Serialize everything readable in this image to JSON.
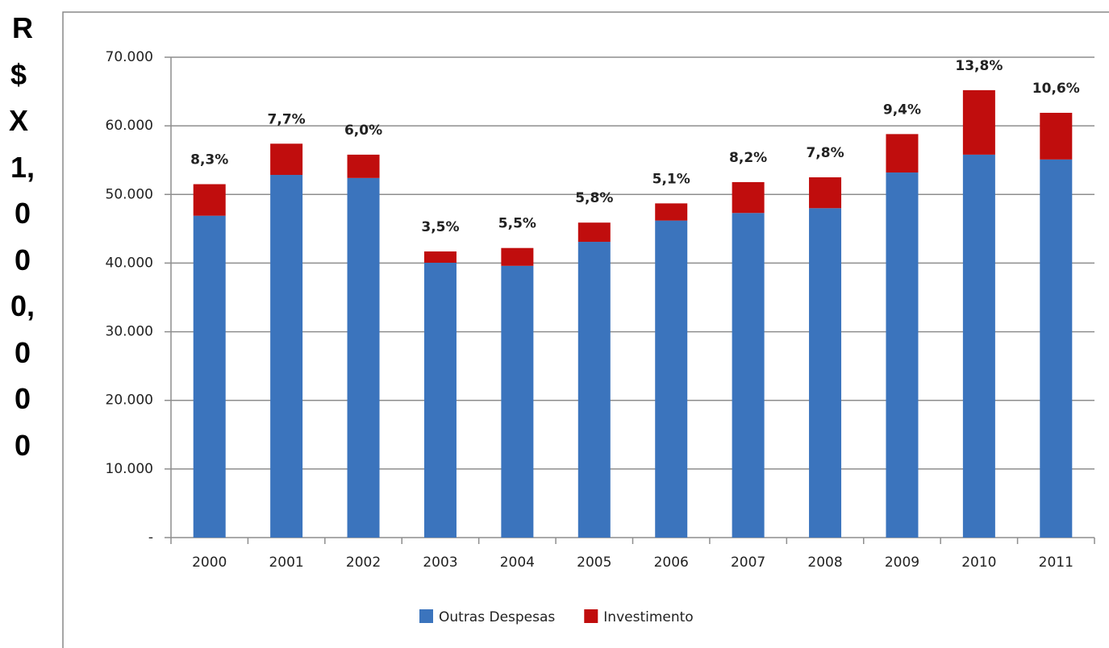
{
  "chart_data": {
    "type": "stacked_bar",
    "y_label": "R$ X 1,000,000",
    "categories": [
      "2000",
      "2001",
      "2002",
      "2003",
      "2004",
      "2005",
      "2006",
      "2007",
      "2008",
      "2009",
      "2010",
      "2011"
    ],
    "series": [
      {
        "name": "Outras Despesas",
        "color": "#3b74bd",
        "values": [
          46900,
          52850,
          52400,
          40050,
          39600,
          43100,
          46200,
          47300,
          48000,
          53200,
          55800,
          55100
        ]
      },
      {
        "name": "Investimento",
        "color": "#c00d0d",
        "values": [
          4600,
          4550,
          3400,
          1650,
          2600,
          2800,
          2500,
          4500,
          4500,
          5600,
          9400,
          6800
        ]
      }
    ],
    "percent_labels": [
      "8,3%",
      "7,7%",
      "6,0%",
      "3,5%",
      "5,5%",
      "5,8%",
      "5,1%",
      "8,2%",
      "7,8%",
      "9,4%",
      "13,8%",
      "10,6%"
    ],
    "ylim": [
      0,
      70000
    ],
    "yticks": [
      {
        "value": 0,
        "label": "-"
      },
      {
        "value": 10000,
        "label": "10.000"
      },
      {
        "value": 20000,
        "label": "20.000"
      },
      {
        "value": 30000,
        "label": "30.000"
      },
      {
        "value": 40000,
        "label": "40.000"
      },
      {
        "value": 50000,
        "label": "50.000"
      },
      {
        "value": 60000,
        "label": "60.000"
      },
      {
        "value": 70000,
        "label": "70.000"
      }
    ],
    "grid": true,
    "legend": "bottom"
  }
}
